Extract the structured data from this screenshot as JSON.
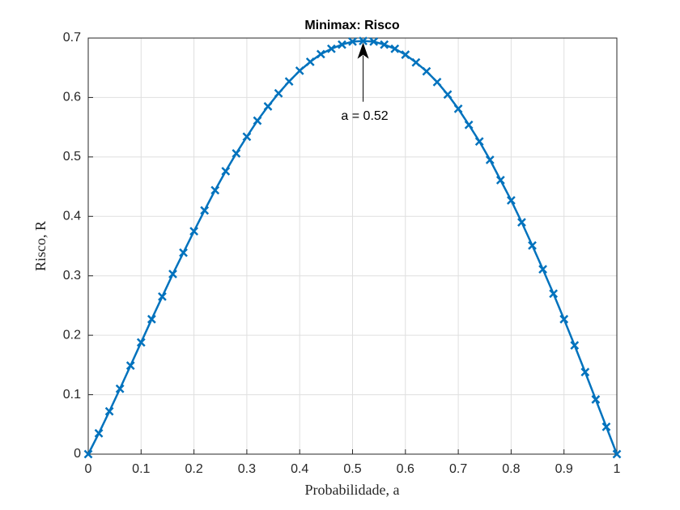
{
  "chart_data": {
    "type": "line",
    "title": "Minimax: Risco",
    "xlabel": "Probabilidade, a",
    "ylabel": "Risco, R",
    "x": [
      0,
      0.02,
      0.04,
      0.06,
      0.08,
      0.1,
      0.12,
      0.14,
      0.16,
      0.18,
      0.2,
      0.22,
      0.24,
      0.26,
      0.28,
      0.3,
      0.32,
      0.34,
      0.36,
      0.38,
      0.4,
      0.42,
      0.44,
      0.46,
      0.48,
      0.5,
      0.52,
      0.54,
      0.56,
      0.58,
      0.6,
      0.62,
      0.64,
      0.66,
      0.68,
      0.7,
      0.72,
      0.74,
      0.76,
      0.78,
      0.8,
      0.82,
      0.84,
      0.86,
      0.88,
      0.9,
      0.92,
      0.94,
      0.96,
      0.98,
      1
    ],
    "series": [
      {
        "color": "#0072bd",
        "marker": "x",
        "values": [
          0,
          0.035,
          0.072,
          0.11,
          0.149,
          0.188,
          0.227,
          0.265,
          0.303,
          0.339,
          0.375,
          0.41,
          0.444,
          0.476,
          0.506,
          0.534,
          0.561,
          0.585,
          0.607,
          0.627,
          0.645,
          0.66,
          0.673,
          0.682,
          0.689,
          0.694,
          0.695,
          0.694,
          0.689,
          0.682,
          0.672,
          0.659,
          0.644,
          0.626,
          0.605,
          0.581,
          0.554,
          0.526,
          0.495,
          0.461,
          0.427,
          0.39,
          0.351,
          0.311,
          0.27,
          0.227,
          0.183,
          0.138,
          0.092,
          0.046,
          0
        ]
      }
    ],
    "annotation": "a = 0.52",
    "xlim": [
      0,
      1
    ],
    "xticks": [
      0,
      0.1,
      0.2,
      0.3,
      0.4,
      0.5,
      0.6,
      0.7,
      0.8,
      0.9,
      1
    ],
    "ylim": [
      0,
      0.7
    ],
    "yticks": [
      0,
      0.1,
      0.2,
      0.3,
      0.4,
      0.5,
      0.6,
      0.7
    ],
    "grid": true
  }
}
